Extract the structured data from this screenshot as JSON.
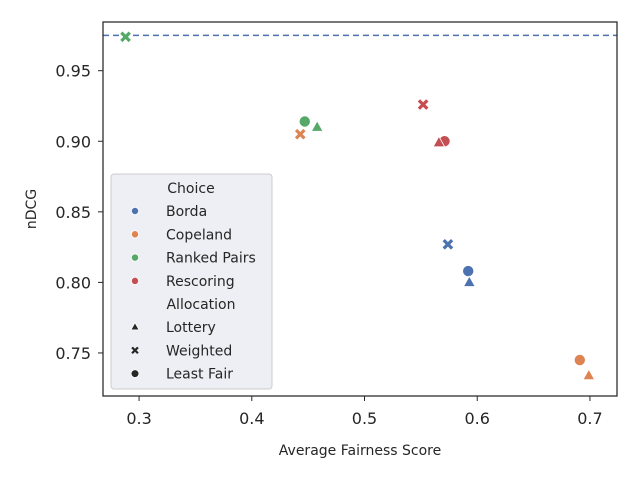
{
  "chart_data": {
    "type": "scatter",
    "title": "",
    "xlabel": "Average Fairness Score",
    "ylabel": "nDCG",
    "xlim": [
      0.268,
      0.724
    ],
    "ylim": [
      0.7195,
      0.9845
    ],
    "xticks": [
      {
        "value": 0.3,
        "label": "0.3"
      },
      {
        "value": 0.4,
        "label": "0.4"
      },
      {
        "value": 0.5,
        "label": "0.5"
      },
      {
        "value": 0.6,
        "label": "0.6"
      },
      {
        "value": 0.7,
        "label": "0.7"
      }
    ],
    "yticks": [
      {
        "value": 0.75,
        "label": "0.75"
      },
      {
        "value": 0.8,
        "label": "0.80"
      },
      {
        "value": 0.85,
        "label": "0.85"
      },
      {
        "value": 0.9,
        "label": "0.90"
      },
      {
        "value": 0.95,
        "label": "0.95"
      }
    ],
    "reference_line": {
      "y": 0.975,
      "style": "dashed",
      "color": "#4c72b0"
    },
    "grid": false,
    "legend": {
      "position": "lower-left",
      "choice_title": "Choice",
      "choice_entries": [
        {
          "label": "Borda",
          "color": "#4c72b0"
        },
        {
          "label": "Copeland",
          "color": "#dd8452"
        },
        {
          "label": "Ranked Pairs",
          "color": "#55a868"
        },
        {
          "label": "Rescoring",
          "color": "#c44e52"
        }
      ],
      "allocation_title": "Allocation",
      "allocation_entries": [
        {
          "label": "Lottery",
          "marker": "triangle"
        },
        {
          "label": "Weighted",
          "marker": "x"
        },
        {
          "label": "Least Fair",
          "marker": "circle"
        }
      ]
    },
    "points": [
      {
        "choice": "Ranked Pairs",
        "allocation": "Weighted",
        "x": 0.288,
        "y": 0.974
      },
      {
        "choice": "Ranked Pairs",
        "allocation": "Least Fair",
        "x": 0.447,
        "y": 0.914
      },
      {
        "choice": "Ranked Pairs",
        "allocation": "Lottery",
        "x": 0.458,
        "y": 0.91
      },
      {
        "choice": "Copeland",
        "allocation": "Weighted",
        "x": 0.443,
        "y": 0.905
      },
      {
        "choice": "Rescoring",
        "allocation": "Weighted",
        "x": 0.552,
        "y": 0.926
      },
      {
        "choice": "Rescoring",
        "allocation": "Least Fair",
        "x": 0.571,
        "y": 0.9
      },
      {
        "choice": "Rescoring",
        "allocation": "Lottery",
        "x": 0.566,
        "y": 0.899
      },
      {
        "choice": "Borda",
        "allocation": "Weighted",
        "x": 0.574,
        "y": 0.827
      },
      {
        "choice": "Borda",
        "allocation": "Least Fair",
        "x": 0.592,
        "y": 0.808
      },
      {
        "choice": "Borda",
        "allocation": "Lottery",
        "x": 0.593,
        "y": 0.8
      },
      {
        "choice": "Copeland",
        "allocation": "Least Fair",
        "x": 0.691,
        "y": 0.745
      },
      {
        "choice": "Copeland",
        "allocation": "Lottery",
        "x": 0.699,
        "y": 0.734
      }
    ]
  }
}
